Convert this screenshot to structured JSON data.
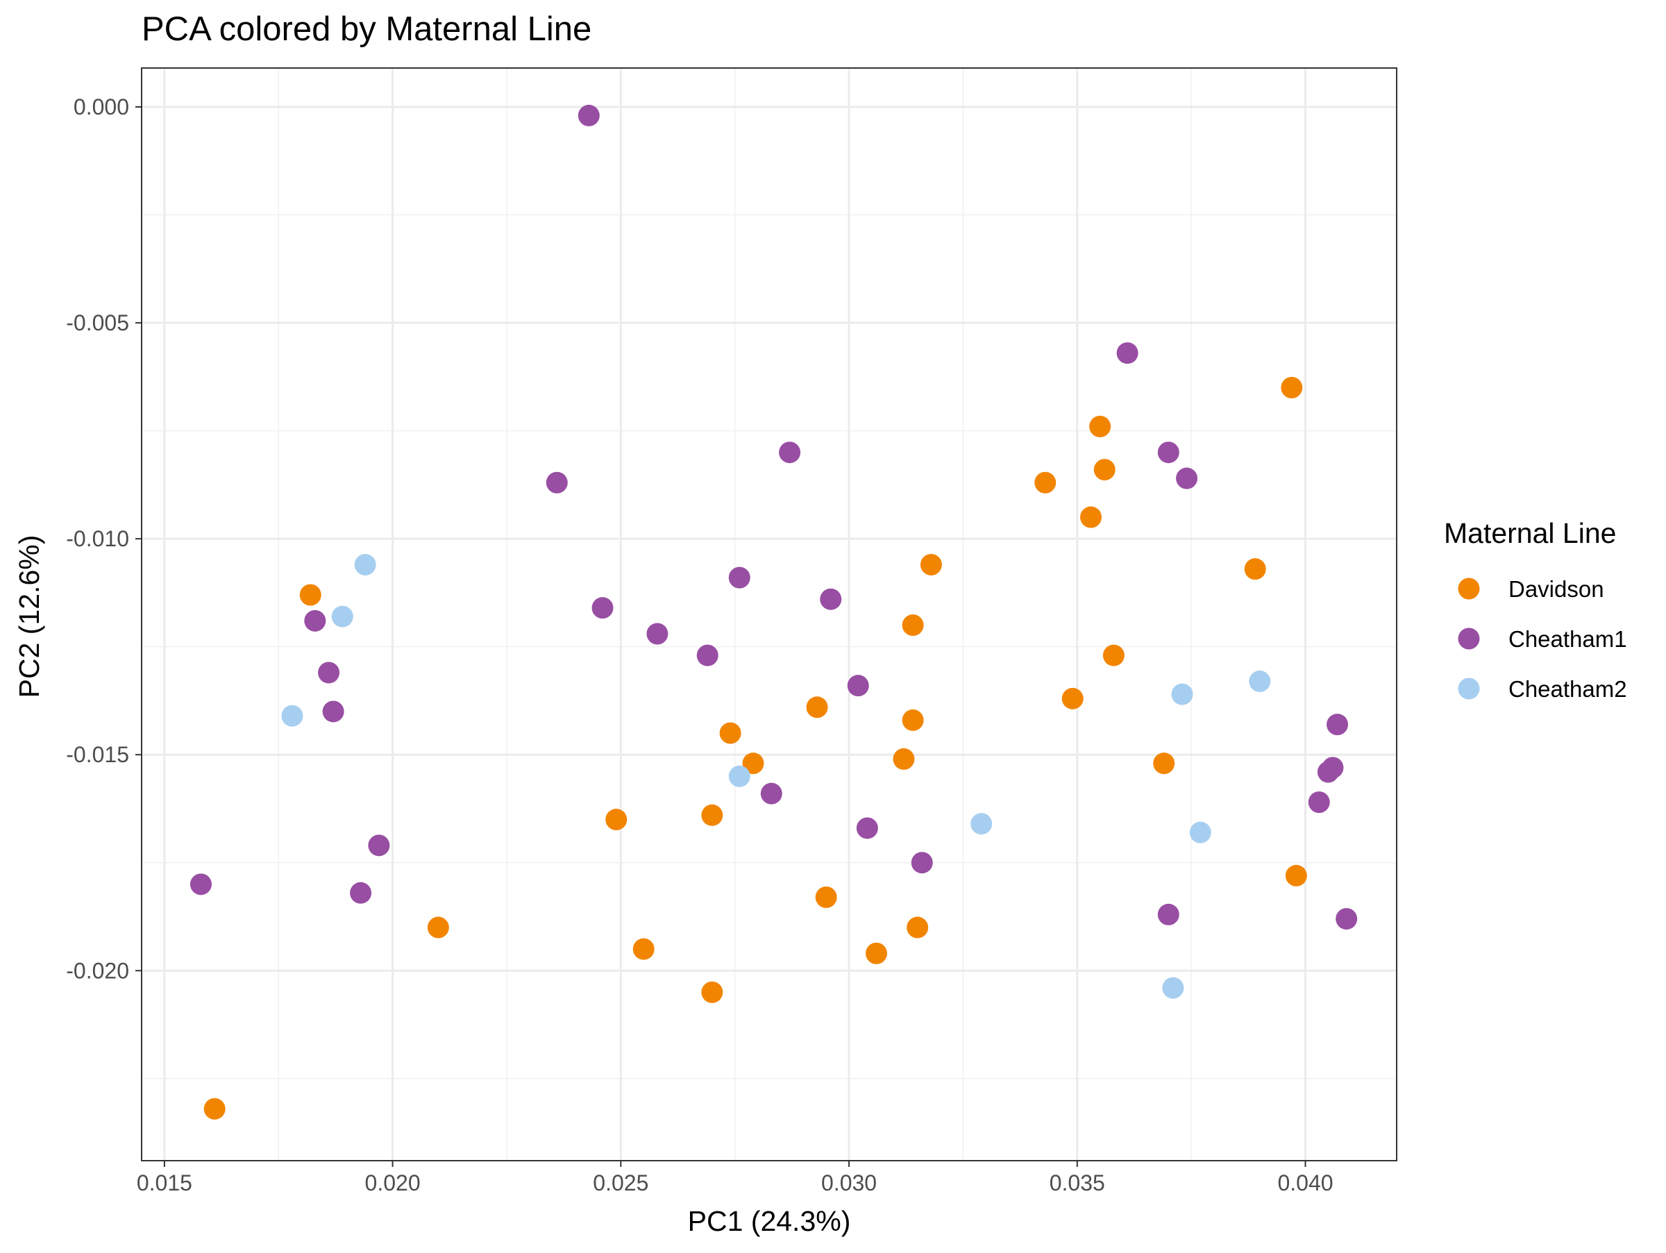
{
  "chart_data": {
    "type": "scatter",
    "title": "PCA colored by Maternal Line",
    "xlabel": "PC1 (24.3%)",
    "ylabel": "PC2 (12.6%)",
    "xlim": [
      0.0145,
      0.042
    ],
    "ylim": [
      -0.0244,
      0.0009
    ],
    "x_ticks": [
      0.015,
      0.02,
      0.025,
      0.03,
      0.035,
      0.04
    ],
    "x_tick_labels": [
      "0.015",
      "0.020",
      "0.025",
      "0.030",
      "0.035",
      "0.040"
    ],
    "y_ticks": [
      0.0,
      -0.005,
      -0.01,
      -0.015,
      -0.02
    ],
    "y_tick_labels": [
      "0.000",
      "-0.005",
      "-0.010",
      "-0.015",
      "-0.020"
    ],
    "grid": true,
    "theme": "bw",
    "legend": {
      "title": "Maternal Line",
      "position": "right"
    },
    "series": [
      {
        "name": "Davidson",
        "color": "#F28500",
        "points": [
          [
            0.0161,
            -0.0232
          ],
          [
            0.0182,
            -0.0113
          ],
          [
            0.021,
            -0.019
          ],
          [
            0.0249,
            -0.0165
          ],
          [
            0.0255,
            -0.0195
          ],
          [
            0.027,
            -0.0164
          ],
          [
            0.027,
            -0.0205
          ],
          [
            0.0274,
            -0.0145
          ],
          [
            0.0279,
            -0.0152
          ],
          [
            0.0293,
            -0.0139
          ],
          [
            0.0295,
            -0.0183
          ],
          [
            0.0306,
            -0.0196
          ],
          [
            0.0312,
            -0.0151
          ],
          [
            0.0314,
            -0.012
          ],
          [
            0.0314,
            -0.0142
          ],
          [
            0.0315,
            -0.019
          ],
          [
            0.0318,
            -0.0106
          ],
          [
            0.0343,
            -0.0087
          ],
          [
            0.0349,
            -0.0137
          ],
          [
            0.0353,
            -0.0095
          ],
          [
            0.0355,
            -0.0074
          ],
          [
            0.0356,
            -0.0084
          ],
          [
            0.0358,
            -0.0127
          ],
          [
            0.0369,
            -0.0152
          ],
          [
            0.0389,
            -0.0107
          ],
          [
            0.0397,
            -0.0065
          ],
          [
            0.0398,
            -0.0178
          ]
        ]
      },
      {
        "name": "Cheatham1",
        "color": "#984EA3",
        "points": [
          [
            0.0158,
            -0.018
          ],
          [
            0.0183,
            -0.0119
          ],
          [
            0.0186,
            -0.0131
          ],
          [
            0.0187,
            -0.014
          ],
          [
            0.0193,
            -0.0182
          ],
          [
            0.0197,
            -0.0171
          ],
          [
            0.0236,
            -0.0087
          ],
          [
            0.0243,
            -0.0002
          ],
          [
            0.0246,
            -0.0116
          ],
          [
            0.0258,
            -0.0122
          ],
          [
            0.0269,
            -0.0127
          ],
          [
            0.0276,
            -0.0109
          ],
          [
            0.0283,
            -0.0159
          ],
          [
            0.0287,
            -0.008
          ],
          [
            0.0296,
            -0.0114
          ],
          [
            0.0302,
            -0.0134
          ],
          [
            0.0304,
            -0.0167
          ],
          [
            0.0316,
            -0.0175
          ],
          [
            0.0361,
            -0.0057
          ],
          [
            0.037,
            -0.008
          ],
          [
            0.037,
            -0.0187
          ],
          [
            0.0374,
            -0.0086
          ],
          [
            0.0403,
            -0.0161
          ],
          [
            0.0405,
            -0.0154
          ],
          [
            0.0406,
            -0.0153
          ],
          [
            0.0407,
            -0.0143
          ],
          [
            0.0409,
            -0.0188
          ]
        ]
      },
      {
        "name": "Cheatham2",
        "color": "#A6CEF0",
        "points": [
          [
            0.0178,
            -0.0141
          ],
          [
            0.0189,
            -0.0118
          ],
          [
            0.0194,
            -0.0106
          ],
          [
            0.0276,
            -0.0155
          ],
          [
            0.0329,
            -0.0166
          ],
          [
            0.0371,
            -0.0204
          ],
          [
            0.0373,
            -0.0136
          ],
          [
            0.0377,
            -0.0168
          ],
          [
            0.039,
            -0.0133
          ]
        ]
      }
    ]
  }
}
